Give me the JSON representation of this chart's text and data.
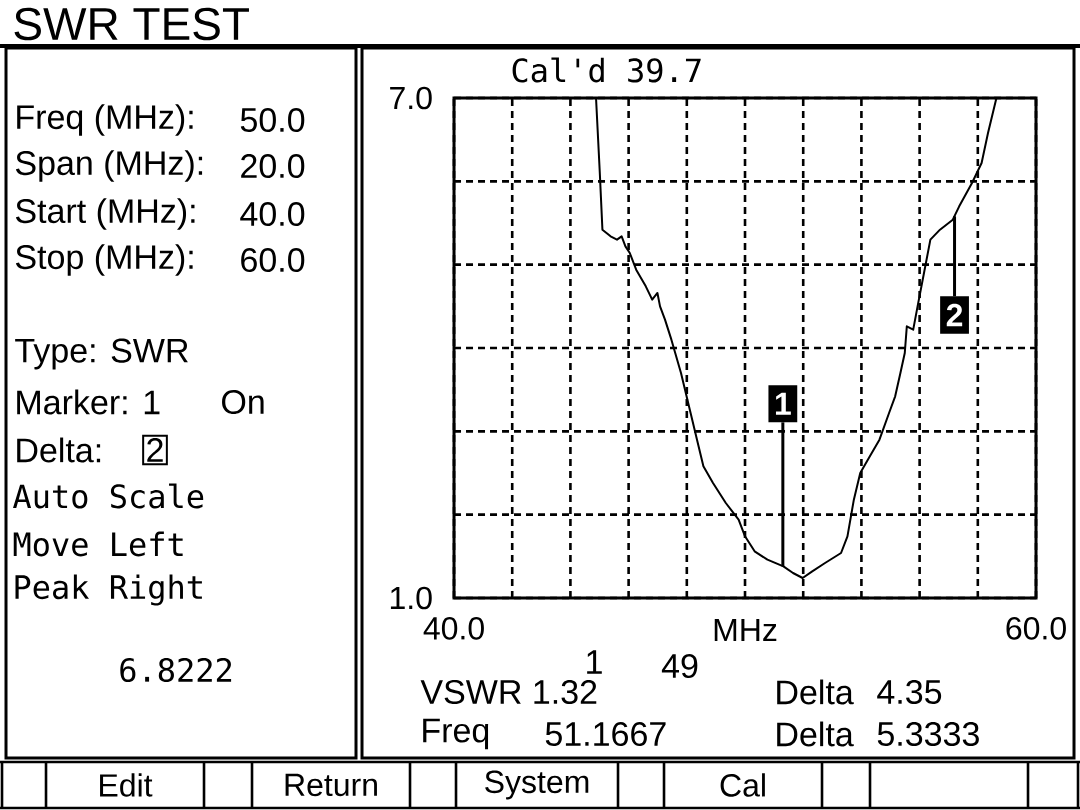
{
  "chart_data": {
    "type": "line",
    "title": "SWR TEST",
    "xlabel": "MHz",
    "x": [
      44.88,
      45.01,
      45.1,
      45.38,
      45.6,
      45.76,
      45.89,
      46.04,
      46.26,
      46.59,
      46.81,
      46.99,
      47.08,
      47.25,
      47.47,
      47.8,
      48.13,
      48.35,
      48.57,
      48.9,
      49.34,
      49.78,
      50.0,
      50.33,
      50.77,
      51.32,
      51.65,
      51.98,
      52.31,
      52.75,
      53.3,
      53.52,
      53.74,
      53.96,
      54.29,
      54.62,
      54.95,
      55.16,
      55.34,
      55.49,
      55.56,
      55.78,
      55.93,
      56.15,
      56.37,
      56.7,
      57.14,
      57.36,
      57.8,
      58.13,
      58.35,
      58.64
    ],
    "series": [
      {
        "color": "#000000",
        "values": [
          7.0,
          6.1,
          5.42,
          5.34,
          5.3,
          5.34,
          5.22,
          5.14,
          4.94,
          4.74,
          4.58,
          4.66,
          4.5,
          4.34,
          4.1,
          3.7,
          3.22,
          2.9,
          2.58,
          2.38,
          2.14,
          1.94,
          1.74,
          1.56,
          1.46,
          1.38,
          1.3,
          1.24,
          1.32,
          1.42,
          1.54,
          1.74,
          2.18,
          2.5,
          2.7,
          2.9,
          3.22,
          3.42,
          3.7,
          3.94,
          4.26,
          4.22,
          4.5,
          4.9,
          5.3,
          5.42,
          5.54,
          5.7,
          5.98,
          6.22,
          6.58,
          7.0
        ]
      }
    ],
    "xlim": [
      40,
      60
    ],
    "ylim": [
      1,
      7
    ],
    "xticks": [
      {
        "value": 40,
        "label": "40.0"
      },
      {
        "value": 42,
        "label": null
      },
      {
        "value": 44,
        "label": null
      },
      {
        "value": 46,
        "label": null
      },
      {
        "value": 48,
        "label": null
      },
      {
        "value": 50,
        "label": null
      },
      {
        "value": 52,
        "label": null
      },
      {
        "value": 54,
        "label": null
      },
      {
        "value": 56,
        "label": null
      },
      {
        "value": 58,
        "label": null
      },
      {
        "value": 60,
        "label": "60.0"
      }
    ],
    "yticks": [
      {
        "value": 1,
        "label": "1.0"
      },
      {
        "value": 2,
        "label": null
      },
      {
        "value": 3,
        "label": null
      },
      {
        "value": 4,
        "label": null
      },
      {
        "value": 5,
        "label": null
      },
      {
        "value": 6,
        "label": null
      },
      {
        "value": 7,
        "label": "7.0"
      }
    ],
    "grid": true,
    "annotations": [
      "Cal'd 39.7",
      "Freq (MHz):",
      "50.0",
      "Span (MHz):",
      "20.0",
      "Start (MHz):",
      "40.0",
      "Stop (MHz):",
      "60.0",
      "Type: SWR",
      "Marker: 1",
      "On",
      "Delta:",
      "2",
      "Auto Scale",
      "Move Left",
      "Peak Right",
      "6.8222",
      "1",
      "49",
      "VSWR 1.32",
      "Freq",
      "51.1667",
      "Delta",
      "4.35",
      "Delta",
      "5.3333",
      "Edit",
      "Return",
      "System",
      "Cal",
      {
        "text": "1",
        "x": 51.3,
        "y": 1.38
      },
      {
        "text": "2",
        "x": 57.2,
        "y": 5.58
      }
    ]
  }
}
